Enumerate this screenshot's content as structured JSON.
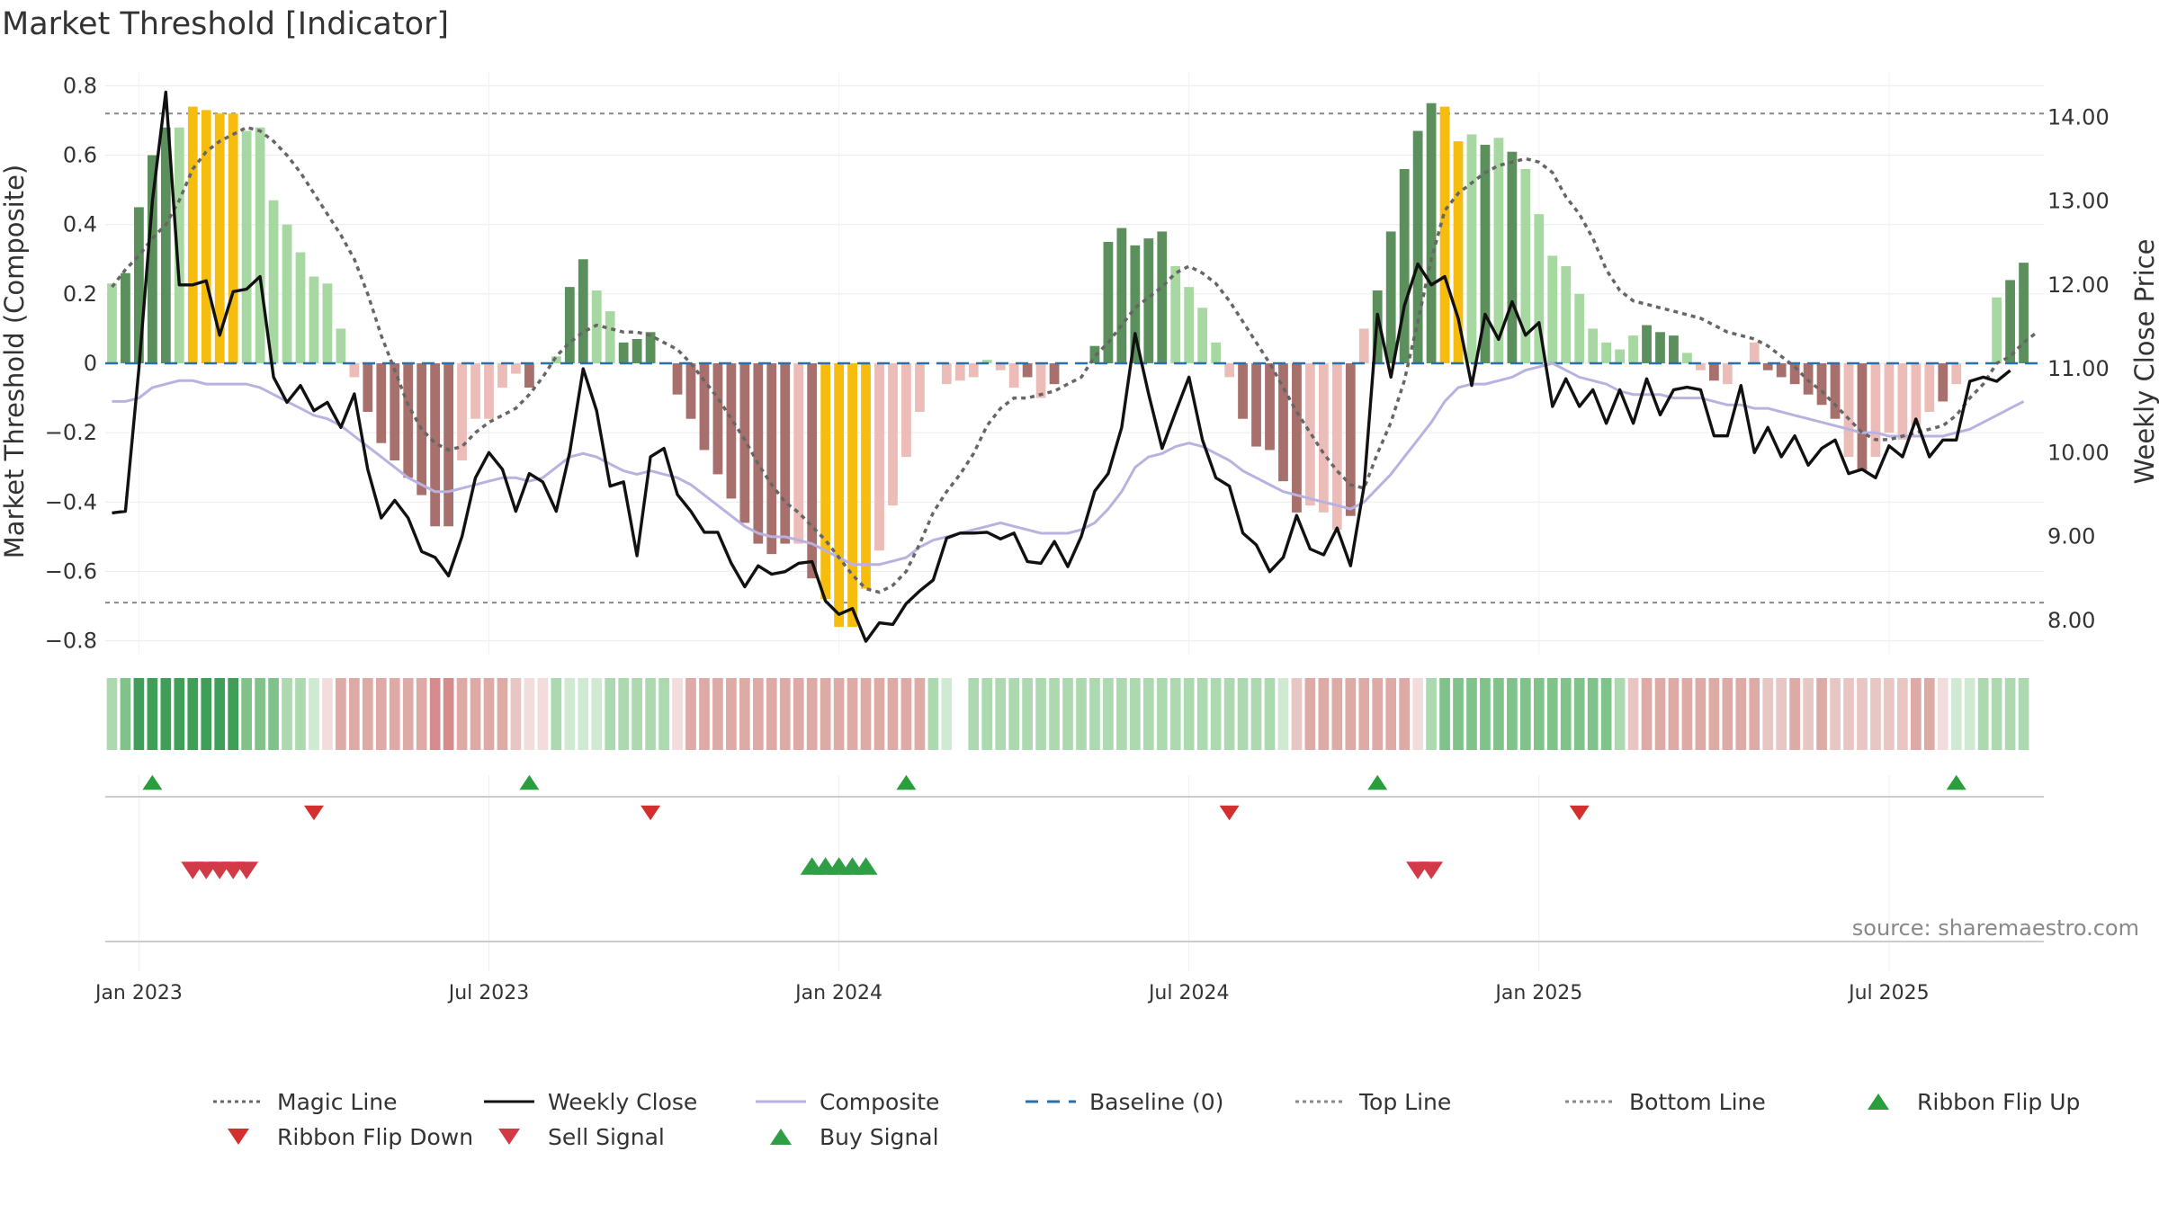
{
  "title": "Market Threshold [Indicator]",
  "source": "source: sharemaestro.com",
  "colors": {
    "magic": "#666666",
    "close": "#111111",
    "composite": "#b9b2e0",
    "baseline": "#2b6fa6",
    "refline": "#888888",
    "flipUp": "#2a9d3c",
    "flipDown": "#d32f2f",
    "sell": "#d33a48",
    "buy": "#2f9e44",
    "posStrong": "#5b8f5b",
    "posWeak": "#a8d8a2",
    "negStrong": "#a8706c",
    "negWeak": "#ecbdb8",
    "extreme": "#f7bd0e"
  },
  "legend": [
    {
      "key": "magic",
      "label": "Magic Line",
      "style": "dot"
    },
    {
      "key": "close",
      "label": "Weekly Close",
      "style": "solid"
    },
    {
      "key": "composite",
      "label": "Composite",
      "style": "solid"
    },
    {
      "key": "baseline",
      "label": "Baseline (0)",
      "style": "dash"
    },
    {
      "key": "top",
      "label": "Top Line",
      "style": "dot"
    },
    {
      "key": "bottom",
      "label": "Bottom Line",
      "style": "dot"
    },
    {
      "key": "flipUp",
      "label": "Ribbon Flip Up",
      "style": "tri-up"
    },
    {
      "key": "flipDown",
      "label": "Ribbon Flip Down",
      "style": "tri-down"
    },
    {
      "key": "sell",
      "label": "Sell Signal",
      "style": "tri-down"
    },
    {
      "key": "buy",
      "label": "Buy Signal",
      "style": "tri-up"
    }
  ],
  "chart_data": {
    "type": "bar",
    "title": "Market Threshold [Indicator]",
    "ylabel": "Market Threshold (Composite)",
    "y2label": "Weekly Close Price",
    "ylim": [
      -0.84,
      0.84
    ],
    "y2lim": [
      7.59,
      14.54
    ],
    "yticks": [
      "0.8",
      "0.6",
      "0.4",
      "0.2",
      "0",
      "−0.2",
      "−0.4",
      "−0.6",
      "−0.8"
    ],
    "yticks_values": [
      0.8,
      0.6,
      0.4,
      0.2,
      0,
      -0.2,
      -0.4,
      -0.6,
      -0.8
    ],
    "y2ticks": [
      "14.00",
      "13.00",
      "12.00",
      "11.00",
      "10.00",
      "9.00",
      "8.00"
    ],
    "y2ticks_values": [
      14,
      13,
      12,
      11,
      10,
      9,
      8
    ],
    "xticks": [
      "Jan 2023",
      "Jul 2023",
      "Jan 2024",
      "Jul 2024",
      "Jan 2025",
      "Jul 2025"
    ],
    "xticks_week": [
      2,
      28,
      54,
      80,
      106,
      132
    ],
    "top_line": 0.72,
    "bottom_line": -0.69,
    "baseline": 0,
    "bars": [
      0.23,
      0.26,
      0.45,
      0.6,
      0.68,
      0.68,
      0.74,
      0.73,
      0.72,
      0.72,
      0.67,
      0.68,
      0.47,
      0.4,
      0.32,
      0.25,
      0.23,
      0.1,
      -0.04,
      -0.14,
      -0.23,
      -0.28,
      -0.33,
      -0.38,
      -0.47,
      -0.47,
      -0.28,
      -0.16,
      -0.16,
      -0.07,
      -0.03,
      -0.07,
      0.0,
      0.02,
      0.22,
      0.3,
      0.21,
      0.15,
      0.06,
      0.07,
      0.09,
      0.0,
      -0.09,
      -0.16,
      -0.25,
      -0.32,
      -0.39,
      -0.46,
      -0.52,
      -0.55,
      -0.52,
      -0.52,
      -0.62,
      -0.68,
      -0.76,
      -0.76,
      -0.65,
      -0.54,
      -0.41,
      -0.27,
      -0.14,
      0.0,
      -0.06,
      -0.05,
      -0.04,
      0.01,
      -0.02,
      -0.07,
      -0.04,
      -0.1,
      -0.06,
      0.0,
      0.0,
      0.05,
      0.35,
      0.39,
      0.34,
      0.36,
      0.38,
      0.28,
      0.22,
      0.16,
      0.06,
      -0.04,
      -0.16,
      -0.24,
      -0.25,
      -0.34,
      -0.43,
      -0.41,
      -0.43,
      -0.48,
      -0.44,
      0.1,
      0.21,
      0.38,
      0.56,
      0.67,
      0.75,
      0.74,
      0.64,
      0.66,
      0.63,
      0.65,
      0.61,
      0.56,
      0.43,
      0.31,
      0.28,
      0.2,
      0.1,
      0.06,
      0.04,
      0.08,
      0.11,
      0.09,
      0.08,
      0.03,
      -0.02,
      -0.05,
      -0.06,
      0.0,
      0.06,
      -0.02,
      -0.04,
      -0.06,
      -0.09,
      -0.12,
      -0.16,
      -0.27,
      -0.31,
      -0.27,
      -0.2,
      -0.22,
      -0.18,
      -0.14,
      -0.11,
      -0.06,
      0.0,
      0.12,
      0.19,
      0.24,
      0.29
    ],
    "bar_kind": [
      "wp",
      "sp",
      "sp",
      "sp",
      "sp",
      "wp",
      "x",
      "x",
      "x",
      "x",
      "wp",
      "wp",
      "wp",
      "wp",
      "wp",
      "wp",
      "wp",
      "wp",
      "wn",
      "sn",
      "sn",
      "sn",
      "sn",
      "sn",
      "sn",
      "sn",
      "wn",
      "wn",
      "wn",
      "wn",
      "wn",
      "sn",
      "z",
      "wp",
      "sp",
      "sp",
      "wp",
      "wp",
      "sp",
      "sp",
      "sp",
      "z",
      "sn",
      "sn",
      "sn",
      "sn",
      "sn",
      "sn",
      "sn",
      "sn",
      "sn",
      "wn",
      "sn",
      "x",
      "x",
      "x",
      "x",
      "wn",
      "wn",
      "wn",
      "wn",
      "z",
      "wn",
      "wn",
      "wn",
      "wp",
      "wn",
      "wn",
      "sn",
      "wn",
      "sn",
      "z",
      "z",
      "sp",
      "sp",
      "sp",
      "sp",
      "sp",
      "sp",
      "wp",
      "wp",
      "wp",
      "wp",
      "wn",
      "sn",
      "sn",
      "sn",
      "sn",
      "sn",
      "wn",
      "wn",
      "wn",
      "sn",
      "wn",
      "sp",
      "sp",
      "sp",
      "sp",
      "sp",
      "x",
      "x",
      "wp",
      "sp",
      "wp",
      "sp",
      "wp",
      "wp",
      "wp",
      "wp",
      "wp",
      "wp",
      "wp",
      "wp",
      "wp",
      "sp",
      "sp",
      "sp",
      "wp",
      "wn",
      "sn",
      "wn",
      "sp",
      "wn",
      "sn",
      "sn",
      "sn",
      "sn",
      "sn",
      "sn",
      "wn",
      "sn",
      "wn",
      "wn",
      "wn",
      "wn",
      "wn",
      "sn",
      "wn",
      "wn",
      "z",
      "wp",
      "sp",
      "sp",
      "sp"
    ],
    "weekly_close": [
      9.28,
      9.3,
      11.0,
      13.0,
      14.3,
      12.0,
      12.0,
      12.05,
      11.4,
      11.92,
      11.95,
      12.1,
      10.9,
      10.6,
      10.8,
      10.5,
      10.6,
      10.3,
      10.7,
      9.8,
      9.22,
      9.43,
      9.22,
      8.82,
      8.75,
      8.53,
      9.0,
      9.7,
      10.0,
      9.8,
      9.3,
      9.75,
      9.65,
      9.3,
      10.0,
      11.0,
      10.5,
      9.6,
      9.65,
      8.77,
      9.95,
      10.05,
      9.5,
      9.3,
      9.05,
      9.05,
      8.68,
      8.4,
      8.65,
      8.55,
      8.58,
      8.68,
      8.7,
      8.23,
      8.07,
      8.14,
      7.75,
      7.97,
      7.95,
      8.2,
      8.35,
      8.48,
      8.98,
      9.04,
      9.04,
      9.05,
      8.97,
      9.04,
      8.7,
      8.68,
      8.94,
      8.64,
      9.0,
      9.54,
      9.75,
      10.3,
      11.42,
      10.7,
      10.05,
      10.48,
      10.9,
      10.15,
      9.7,
      9.6,
      9.04,
      8.9,
      8.58,
      8.75,
      9.25,
      8.85,
      8.78,
      9.1,
      8.65,
      9.6,
      11.65,
      10.9,
      11.75,
      12.25,
      12.0,
      12.1,
      11.6,
      10.8,
      11.65,
      11.35,
      11.8,
      11.4,
      11.55,
      10.55,
      10.88,
      10.55,
      10.75,
      10.35,
      10.75,
      10.35,
      10.88,
      10.45,
      10.75,
      10.78,
      10.75,
      10.2,
      10.2,
      10.8,
      10.0,
      10.3,
      9.95,
      10.2,
      9.85,
      10.05,
      10.15,
      9.75,
      9.8,
      9.7,
      10.08,
      9.95,
      10.4,
      9.95,
      10.15,
      10.15,
      10.85,
      10.9,
      10.85,
      10.98
    ],
    "magic_line": [
      0.22,
      0.27,
      0.31,
      0.36,
      0.4,
      0.47,
      0.56,
      0.61,
      0.64,
      0.66,
      0.68,
      0.67,
      0.64,
      0.6,
      0.55,
      0.49,
      0.43,
      0.37,
      0.3,
      0.2,
      0.08,
      -0.02,
      -0.12,
      -0.19,
      -0.23,
      -0.25,
      -0.24,
      -0.2,
      -0.17,
      -0.15,
      -0.13,
      -0.09,
      -0.04,
      0.02,
      0.06,
      0.09,
      0.11,
      0.1,
      0.09,
      0.09,
      0.08,
      0.06,
      0.04,
      0.0,
      -0.05,
      -0.1,
      -0.16,
      -0.22,
      -0.29,
      -0.35,
      -0.4,
      -0.43,
      -0.47,
      -0.51,
      -0.56,
      -0.61,
      -0.65,
      -0.66,
      -0.64,
      -0.6,
      -0.52,
      -0.43,
      -0.37,
      -0.32,
      -0.26,
      -0.18,
      -0.13,
      -0.1,
      -0.1,
      -0.09,
      -0.08,
      -0.06,
      -0.04,
      0.02,
      0.06,
      0.11,
      0.16,
      0.19,
      0.22,
      0.26,
      0.28,
      0.26,
      0.23,
      0.18,
      0.12,
      0.06,
      0.0,
      -0.07,
      -0.14,
      -0.2,
      -0.26,
      -0.31,
      -0.35,
      -0.36,
      -0.26,
      -0.17,
      -0.05,
      0.12,
      0.3,
      0.44,
      0.49,
      0.52,
      0.55,
      0.57,
      0.58,
      0.59,
      0.58,
      0.55,
      0.48,
      0.43,
      0.36,
      0.27,
      0.21,
      0.18,
      0.17,
      0.16,
      0.15,
      0.14,
      0.13,
      0.11,
      0.09,
      0.08,
      0.07,
      0.05,
      0.02,
      -0.01,
      -0.05,
      -0.08,
      -0.12,
      -0.16,
      -0.2,
      -0.22,
      -0.22,
      -0.21,
      -0.2,
      -0.19,
      -0.18,
      -0.15,
      -0.1,
      -0.06,
      0.0,
      0.02,
      0.06,
      0.09
    ],
    "composite": [
      -0.11,
      -0.11,
      -0.1,
      -0.07,
      -0.06,
      -0.05,
      -0.05,
      -0.06,
      -0.06,
      -0.06,
      -0.06,
      -0.07,
      -0.09,
      -0.11,
      -0.13,
      -0.15,
      -0.16,
      -0.18,
      -0.21,
      -0.24,
      -0.27,
      -0.3,
      -0.33,
      -0.35,
      -0.37,
      -0.37,
      -0.36,
      -0.35,
      -0.34,
      -0.33,
      -0.33,
      -0.34,
      -0.33,
      -0.3,
      -0.27,
      -0.26,
      -0.27,
      -0.29,
      -0.31,
      -0.32,
      -0.31,
      -0.32,
      -0.33,
      -0.35,
      -0.38,
      -0.41,
      -0.44,
      -0.47,
      -0.49,
      -0.5,
      -0.5,
      -0.51,
      -0.52,
      -0.54,
      -0.56,
      -0.58,
      -0.58,
      -0.58,
      -0.57,
      -0.56,
      -0.53,
      -0.51,
      -0.5,
      -0.49,
      -0.48,
      -0.47,
      -0.46,
      -0.47,
      -0.48,
      -0.49,
      -0.49,
      -0.49,
      -0.48,
      -0.46,
      -0.42,
      -0.37,
      -0.3,
      -0.27,
      -0.26,
      -0.24,
      -0.23,
      -0.24,
      -0.26,
      -0.28,
      -0.31,
      -0.33,
      -0.35,
      -0.37,
      -0.38,
      -0.39,
      -0.4,
      -0.41,
      -0.42,
      -0.4,
      -0.36,
      -0.32,
      -0.27,
      -0.22,
      -0.17,
      -0.11,
      -0.07,
      -0.06,
      -0.06,
      -0.05,
      -0.04,
      -0.02,
      -0.01,
      0.0,
      -0.02,
      -0.04,
      -0.05,
      -0.06,
      -0.08,
      -0.09,
      -0.09,
      -0.09,
      -0.1,
      -0.1,
      -0.1,
      -0.11,
      -0.12,
      -0.12,
      -0.13,
      -0.13,
      -0.14,
      -0.15,
      -0.16,
      -0.17,
      -0.18,
      -0.19,
      -0.2,
      -0.2,
      -0.21,
      -0.21,
      -0.21,
      -0.21,
      -0.21,
      -0.2,
      -0.19,
      -0.17,
      -0.15,
      -0.13,
      -0.11
    ],
    "ribbon": [
      "ps",
      "pm",
      "pb",
      "pb",
      "pb",
      "pb",
      "pb",
      "pb",
      "pb",
      "pb",
      "pm",
      "pm",
      "pm",
      "ps",
      "ps",
      "pw",
      "nw",
      "nm",
      "nm",
      "nm",
      "nm",
      "nm",
      "nm",
      "nm",
      "nb",
      "nb",
      "nm",
      "nm",
      "nm",
      "nm",
      "ns",
      "nw",
      "nw",
      "ps",
      "pw",
      "pw",
      "pw",
      "ps",
      "ps",
      "ps",
      "ps",
      "ps",
      "nw",
      "nm",
      "nm",
      "nm",
      "nm",
      "nm",
      "nm",
      "nm",
      "nm",
      "nm",
      "nm",
      "nm",
      "nm",
      "nm",
      "nm",
      "nm",
      "nm",
      "nm",
      "nm",
      "ps",
      "pw",
      "gap",
      "ps",
      "ps",
      "ps",
      "ps",
      "ps",
      "ps",
      "ps",
      "ps",
      "ps",
      "ps",
      "ps",
      "ps",
      "ps",
      "ps",
      "ps",
      "ps",
      "ps",
      "ps",
      "ps",
      "ps",
      "ps",
      "ps",
      "ps",
      "pw",
      "ns",
      "nm",
      "nm",
      "nm",
      "nm",
      "nm",
      "nm",
      "nm",
      "nm",
      "nw",
      "ps",
      "pm",
      "pm",
      "pm",
      "pm",
      "pm",
      "pm",
      "pm",
      "pm",
      "pm",
      "pm",
      "pm",
      "pm",
      "pm",
      "ps",
      "ns",
      "nm",
      "nm",
      "nm",
      "nm",
      "nm",
      "nm",
      "nm",
      "nm",
      "nm",
      "ns",
      "ns",
      "nm",
      "ns",
      "nm",
      "ns",
      "ns",
      "ns",
      "ns",
      "ns",
      "ns",
      "nm",
      "nm",
      "nw",
      "pw",
      "pw",
      "ps",
      "ps",
      "ps",
      "ps"
    ],
    "ribbon_flip_up_week": [
      3,
      31,
      59,
      94,
      137
    ],
    "ribbon_flip_down_week": [
      15,
      40,
      83,
      109
    ],
    "sell_signal_week": [
      6,
      7,
      8,
      9,
      10,
      97,
      98
    ],
    "buy_signal_week": [
      52,
      53,
      54,
      55,
      56
    ],
    "weeks": 144
  }
}
